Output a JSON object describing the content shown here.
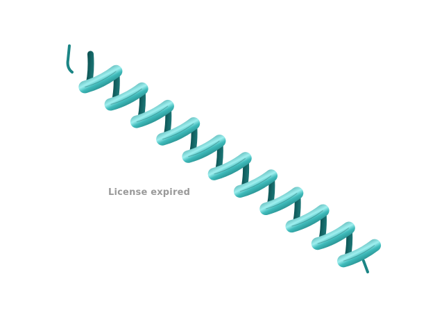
{
  "viewer": {
    "watermark_text": "License expired",
    "ribbon_color": "#2a9f9f",
    "ribbon_dark": "#0f5f5f",
    "ribbon_light": "#8fe6e6",
    "background": "#ffffff"
  }
}
